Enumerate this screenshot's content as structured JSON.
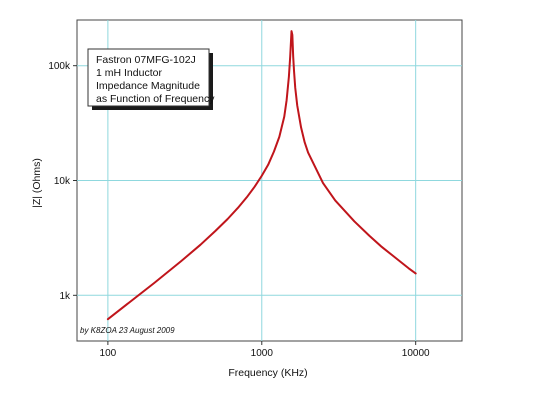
{
  "chart_data": {
    "type": "line",
    "title_lines": [
      "Fastron 07MFG-102J",
      "1 mH Inductor",
      "Impedance Magnitude",
      "as Function of Frequency"
    ],
    "xlabel": "Frequency (KHz)",
    "ylabel": "|Z| (Ohms)",
    "x_scale": "log",
    "y_scale": "log",
    "xlim": [
      63,
      20000
    ],
    "ylim": [
      400,
      250000
    ],
    "x_ticks": [
      {
        "value": 100,
        "label": "100"
      },
      {
        "value": 1000,
        "label": "1000"
      },
      {
        "value": 10000,
        "label": "10000"
      }
    ],
    "y_ticks": [
      {
        "value": 1000,
        "label": "1k"
      },
      {
        "value": 10000,
        "label": "10k"
      },
      {
        "value": 100000,
        "label": "100k"
      }
    ],
    "grid": true,
    "annotation": "by K8ZOA 23 August 2009",
    "series": [
      {
        "color": "#c0151b",
        "x": [
          100,
          200,
          300,
          400,
          500,
          600,
          700,
          800,
          900,
          1000,
          1100,
          1200,
          1300,
          1400,
          1450,
          1500,
          1530,
          1560,
          1580,
          1600,
          1620,
          1650,
          1700,
          1800,
          1900,
          2000,
          2500,
          3000,
          4000,
          5000,
          6000,
          7000,
          8000,
          9000,
          10000
        ],
        "y": [
          620,
          1280,
          1990,
          2760,
          3640,
          4620,
          5780,
          7160,
          8860,
          11000,
          13700,
          17900,
          24000,
          36000,
          50000,
          80000,
          120000,
          200000,
          185000,
          120000,
          90000,
          64000,
          45000,
          29000,
          21500,
          17500,
          9500,
          6700,
          4400,
          3300,
          2650,
          2250,
          1950,
          1720,
          1550
        ]
      }
    ]
  }
}
